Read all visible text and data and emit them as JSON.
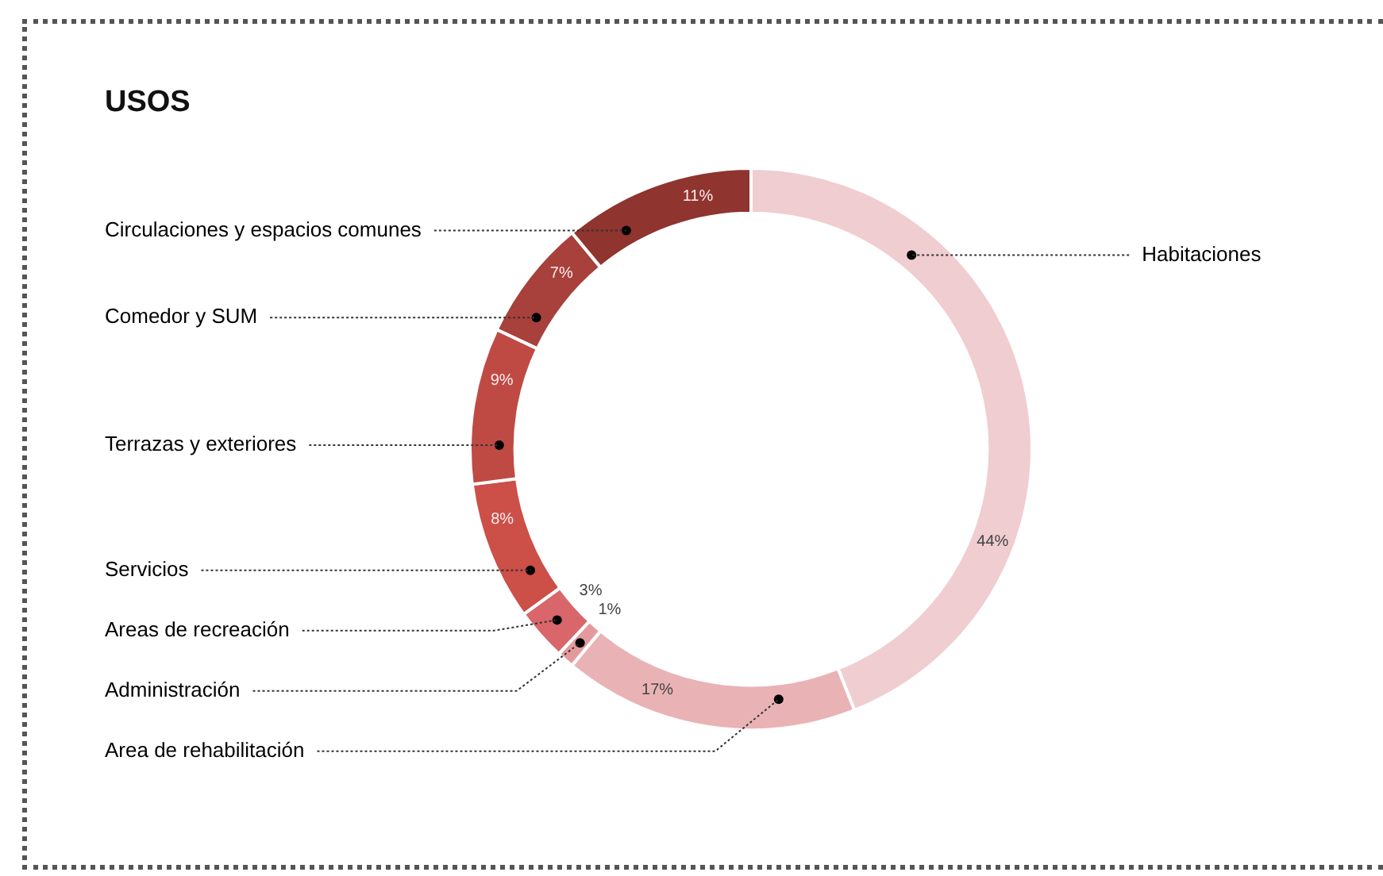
{
  "chart_data": {
    "type": "donut",
    "title": "USOS",
    "categories": [
      "Habitaciones",
      "Area de rehabilitación",
      "Administración",
      "Areas de recreación",
      "Servicios",
      "Terrazas y exteriores",
      "Comedor y SUM",
      "Circulaciones y espacios comunes"
    ],
    "values": [
      44,
      17,
      1,
      3,
      8,
      9,
      7,
      11
    ],
    "value_labels": [
      "44%",
      "17%",
      "1%",
      "3%",
      "8%",
      "9%",
      "7%",
      "11%"
    ],
    "colors": [
      "#f0cdd0",
      "#e9b3b6",
      "#e49a9c",
      "#d9666a",
      "#cc4f48",
      "#bf4a44",
      "#a8403b",
      "#8f342f"
    ],
    "legend": false
  }
}
